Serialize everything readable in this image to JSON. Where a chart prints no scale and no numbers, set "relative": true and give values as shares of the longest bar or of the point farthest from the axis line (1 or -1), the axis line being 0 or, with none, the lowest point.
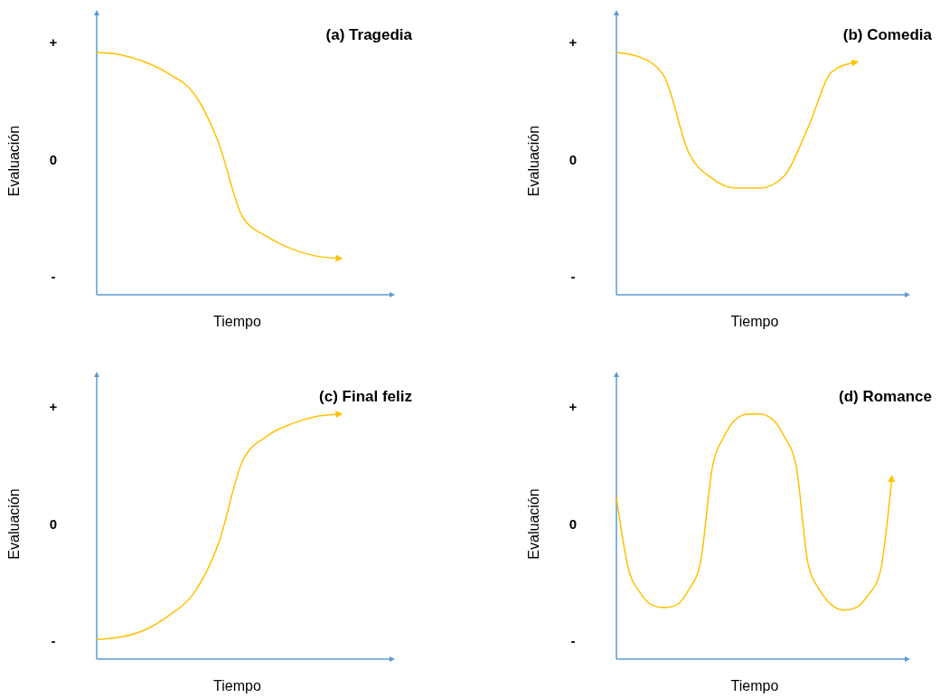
{
  "chart_data": [
    {
      "type": "line",
      "title": "(a) Tragedia",
      "xlabel": "Tiempo",
      "ylabel": "Evaluación",
      "annotations": [
        "+",
        "0",
        "-"
      ],
      "relative": true,
      "categories": [
        null,
        null,
        null,
        null,
        null,
        null,
        null,
        null,
        null,
        null,
        null,
        null,
        null
      ],
      "series": [
        {
          "color": "#ffc000",
          "values": [
            1,
            0.99,
            0.96,
            0.91,
            0.83,
            0.63,
            0.32,
            0.24,
            0.19,
            0.16,
            0.15,
            null,
            null
          ]
        }
      ]
    },
    {
      "type": "line",
      "title": "(b) Comedia",
      "xlabel": "Tiempo",
      "ylabel": "Evaluación",
      "annotations": [
        "+",
        "0",
        "-"
      ],
      "relative": true,
      "categories": [
        null,
        null,
        null,
        null,
        null,
        null,
        null,
        null,
        null,
        null,
        null,
        null,
        null
      ],
      "series": [
        {
          "color": "#ffc000",
          "values": [
            1,
            0.98,
            0.9,
            0.59,
            0.48,
            0.44,
            0.44,
            0.49,
            0.69,
            0.92,
            0.96,
            null,
            null
          ]
        }
      ]
    },
    {
      "type": "line",
      "title": "(c) Final feliz",
      "xlabel": "Tiempo",
      "ylabel": "Evaluación",
      "annotations": [
        "+",
        "0",
        "-"
      ],
      "relative": true,
      "categories": [
        null,
        null,
        null,
        null,
        null,
        null,
        null,
        null,
        null,
        null,
        null,
        null,
        null
      ],
      "series": [
        {
          "color": "#ffc000",
          "values": [
            0.08,
            0.09,
            0.12,
            0.18,
            0.27,
            0.47,
            0.81,
            0.91,
            0.96,
            0.99,
            1,
            null,
            null
          ]
        }
      ]
    },
    {
      "type": "line",
      "title": "(d) Romance",
      "xlabel": "Tiempo",
      "ylabel": "Evaluación",
      "annotations": [
        "+",
        "0",
        "-"
      ],
      "relative": true,
      "categories": [
        null,
        null,
        null,
        null,
        null,
        null,
        null,
        null,
        null,
        null,
        null,
        null,
        null,
        null,
        null,
        null,
        null,
        null,
        null,
        null,
        null,
        null,
        null,
        null,
        null
      ],
      "series": [
        {
          "color": "#ffc000",
          "values": [
            0.66,
            0.37,
            0.27,
            0.22,
            0.21,
            0.22,
            0.28,
            0.39,
            0.78,
            0.91,
            0.98,
            1,
            1,
            0.98,
            0.91,
            0.79,
            0.39,
            0.28,
            0.22,
            0.2,
            0.21,
            0.26,
            0.35,
            0.74,
            null
          ]
        }
      ]
    }
  ]
}
